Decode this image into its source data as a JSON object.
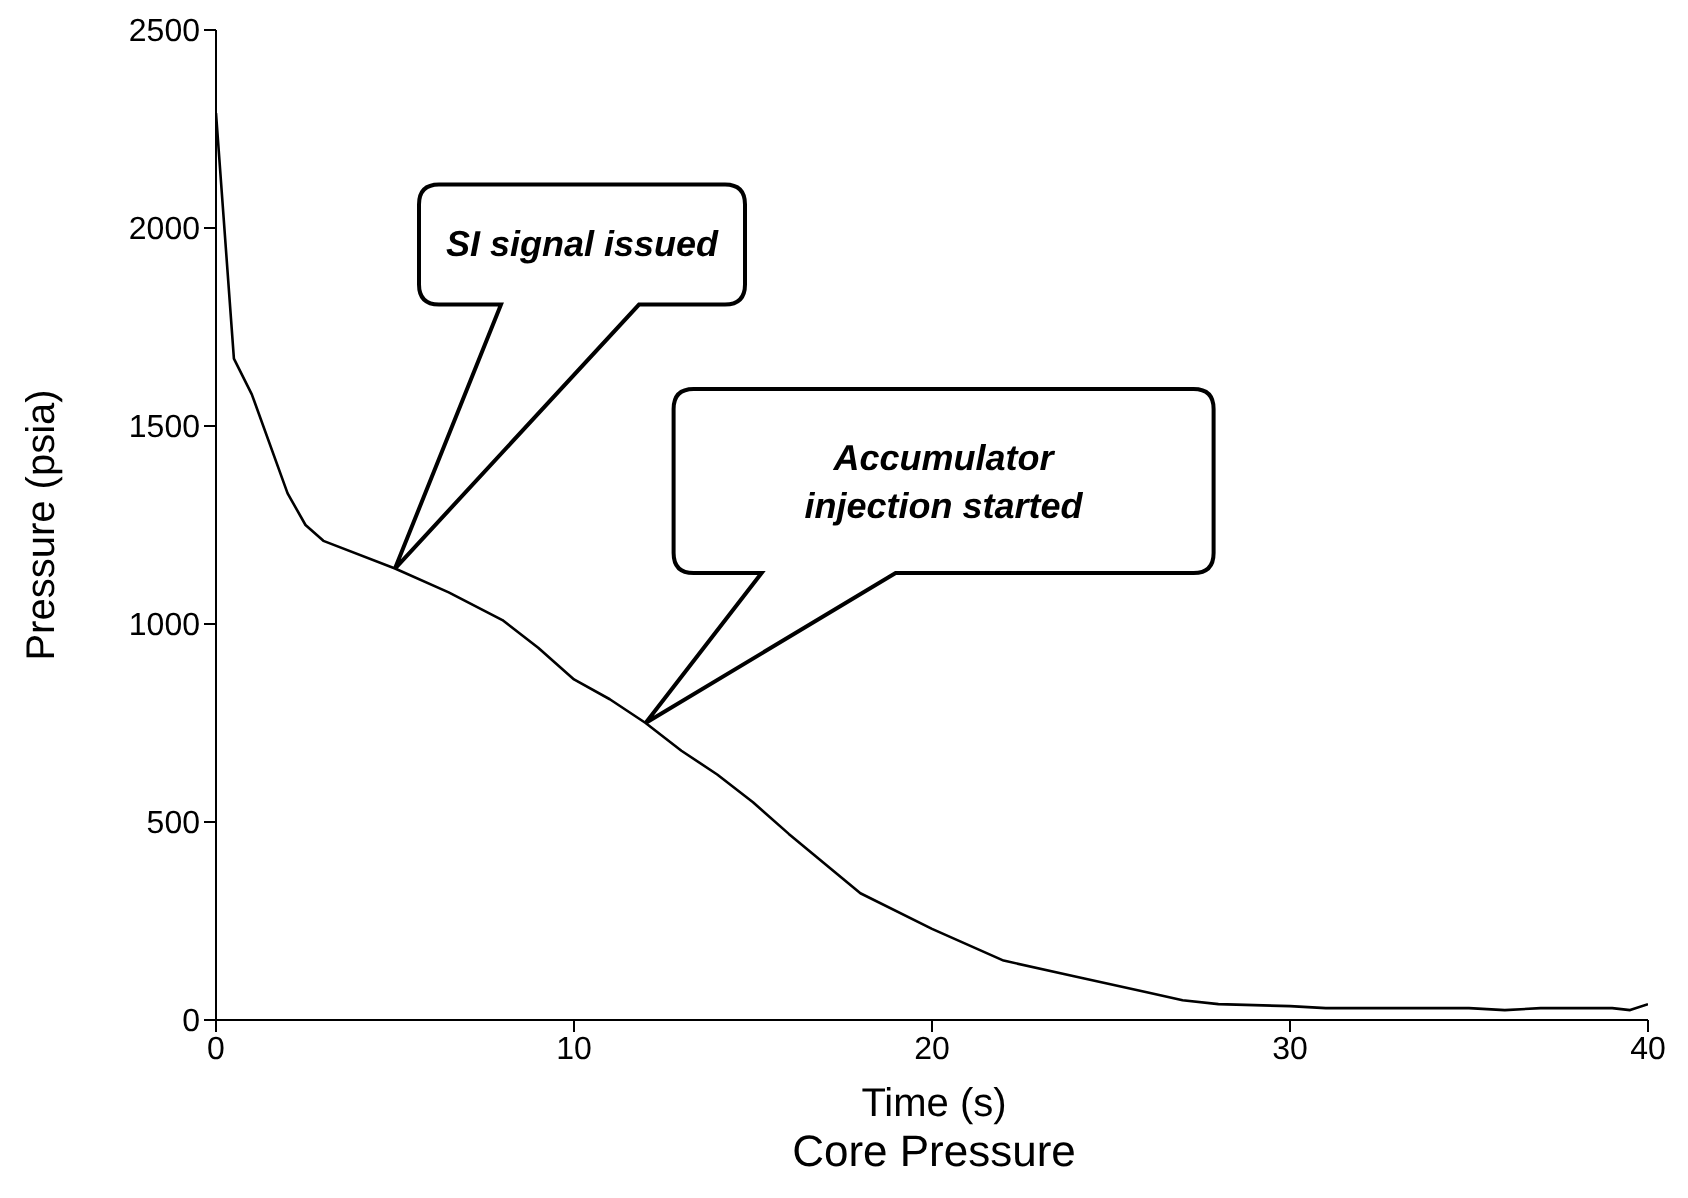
{
  "chart_data": {
    "type": "line",
    "title": "Core Pressure",
    "xlabel": "Time (s)",
    "ylabel": "Pressure  (psia)",
    "x": [
      0,
      0.5,
      1,
      2,
      2.5,
      3,
      5,
      6.5,
      8,
      9,
      10,
      11,
      12,
      13,
      14,
      15,
      16,
      18,
      20,
      22,
      24,
      26,
      27,
      28,
      30,
      31,
      35,
      36,
      37,
      39,
      39.5,
      40
    ],
    "series": [
      {
        "color": "#000000",
        "values": [
          2290,
          1670,
          1580,
          1330,
          1250,
          1210,
          1140,
          1080,
          1010,
          940,
          860,
          810,
          750,
          680,
          620,
          550,
          470,
          320,
          230,
          150,
          110,
          70,
          50,
          40,
          35,
          30,
          30,
          25,
          30,
          30,
          25,
          40
        ]
      }
    ],
    "xlim": [
      0,
      40
    ],
    "xticks": [
      0,
      10,
      20,
      30,
      40
    ],
    "ylim": [
      0,
      2500
    ],
    "yticks": [
      0,
      500,
      1000,
      1500,
      2000,
      2500
    ],
    "marker": "none",
    "line_style": "solid",
    "annotations": [
      "SI signal issued",
      "Accumulator injection started"
    ]
  }
}
